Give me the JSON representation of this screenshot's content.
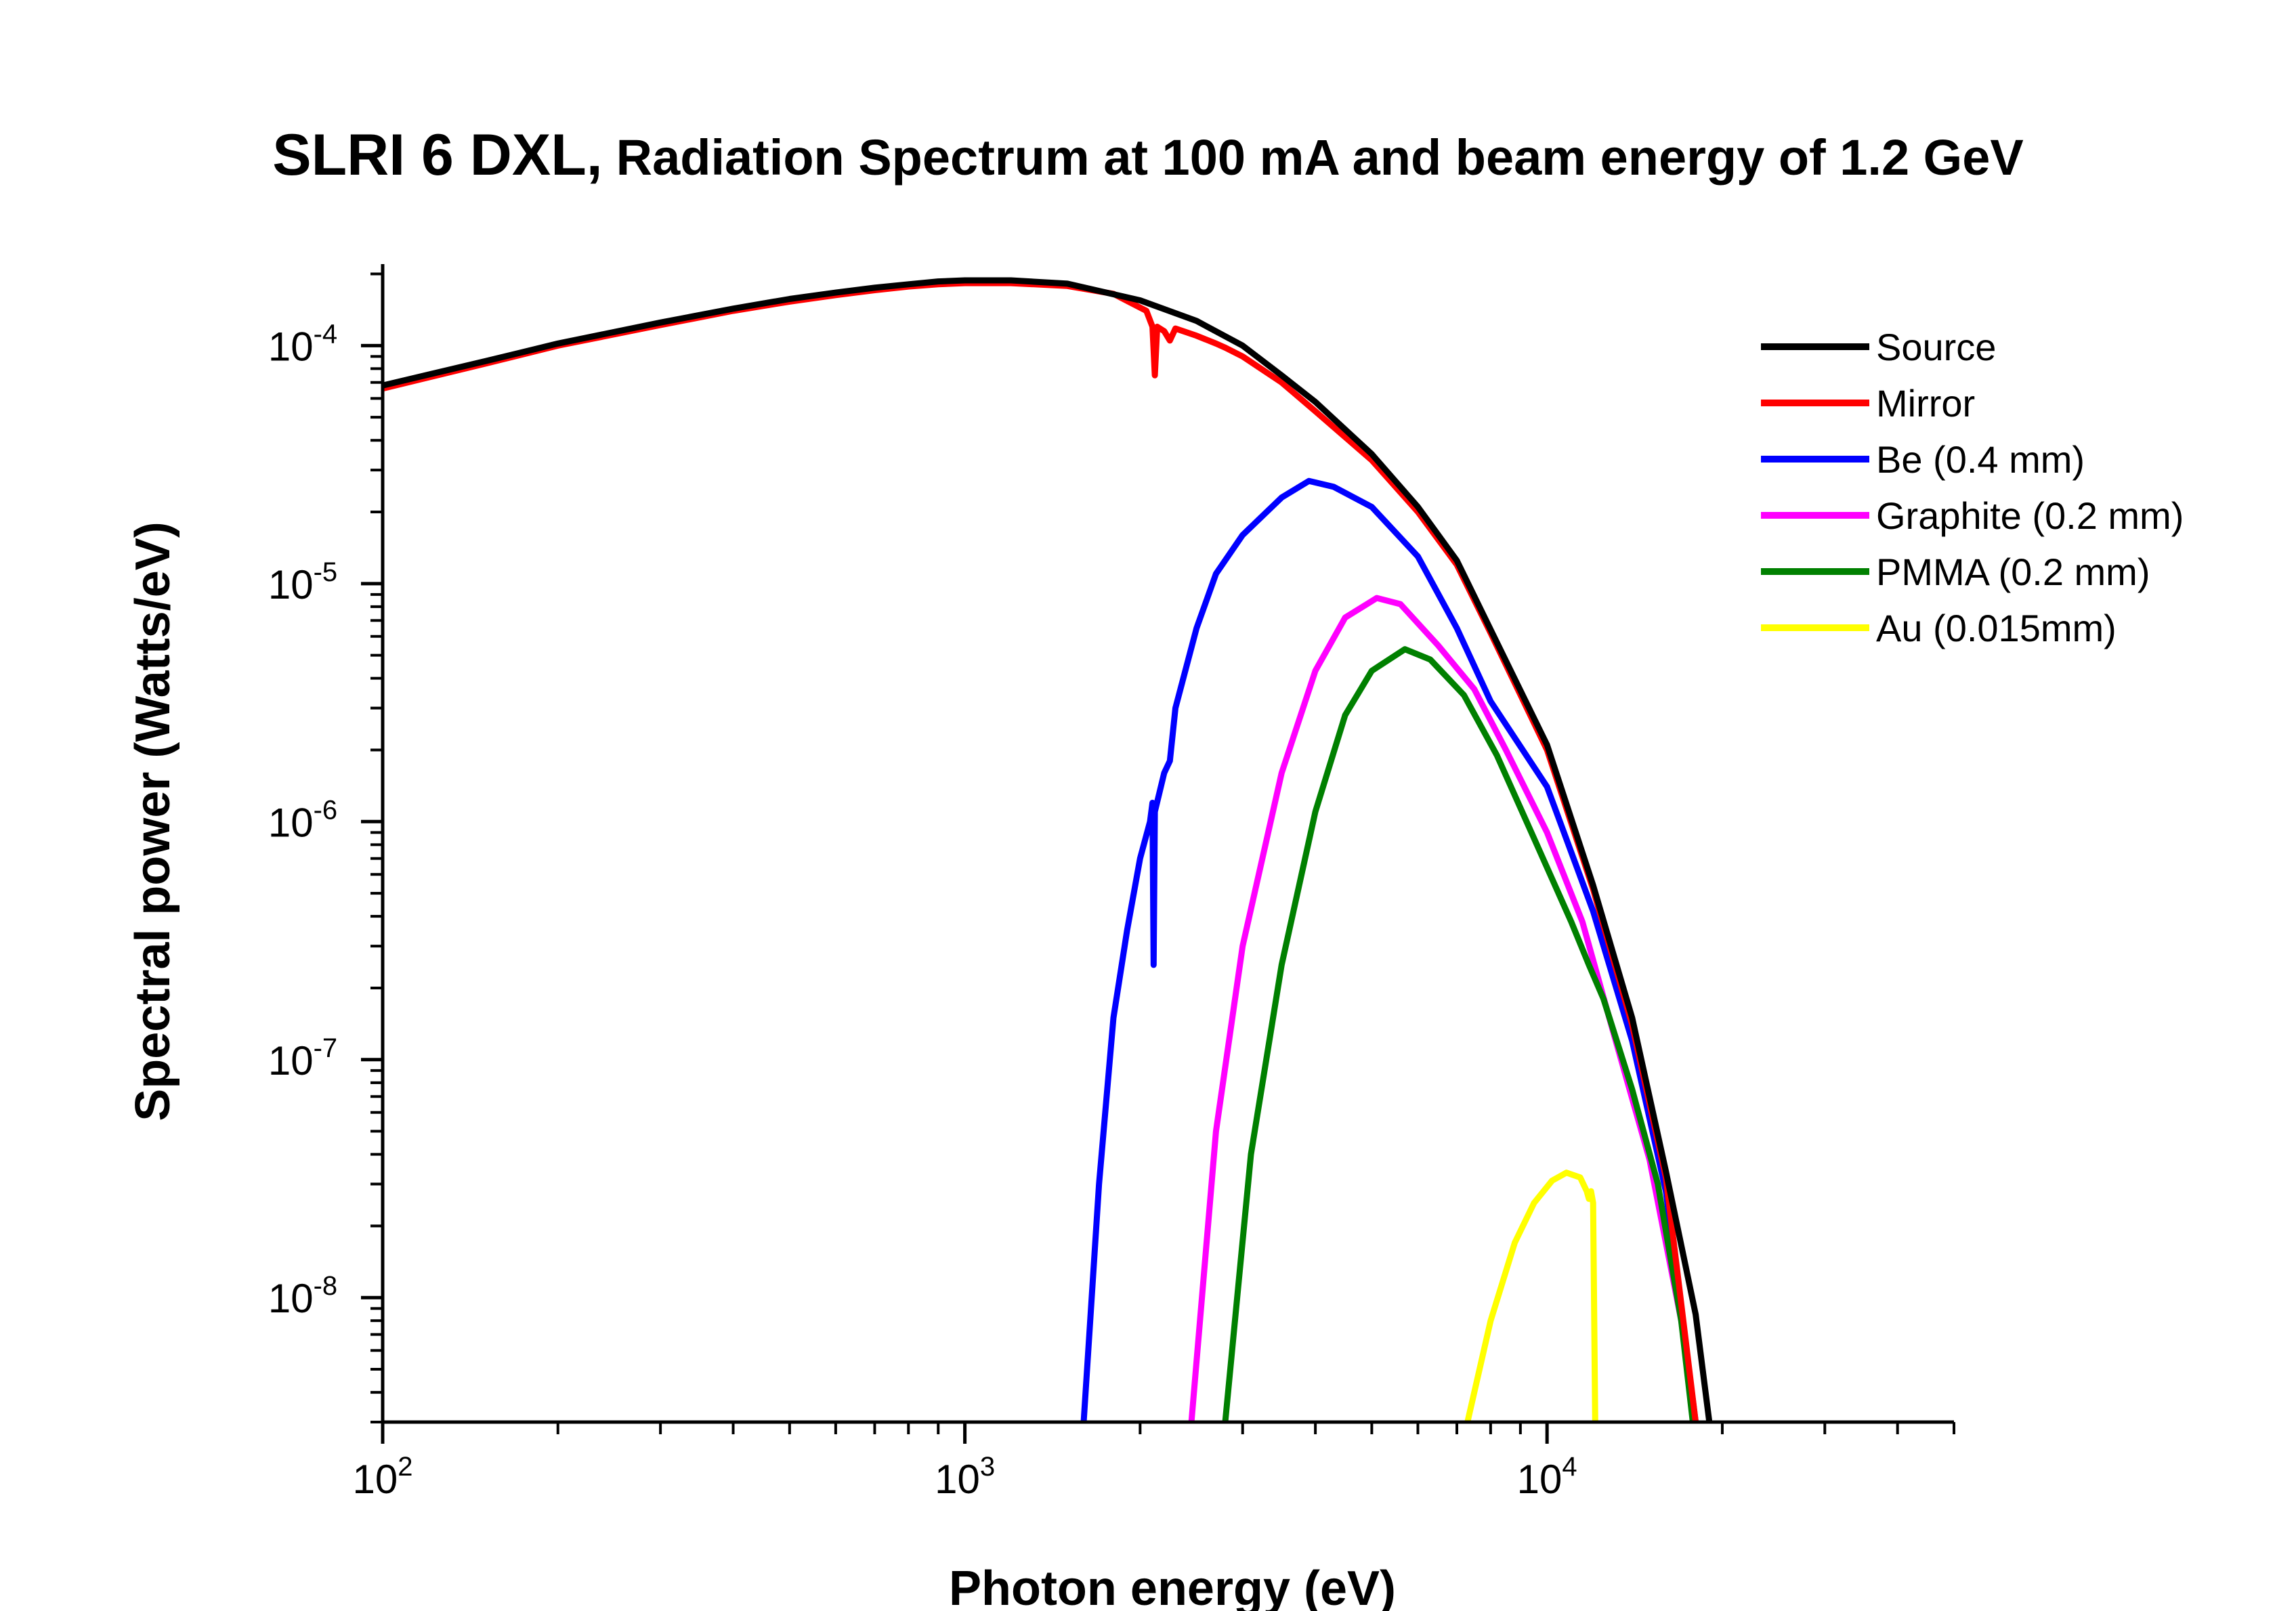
{
  "chart_data": {
    "type": "line",
    "title": "SLRI 6 DXL, Radiation Spectrum at 100 mA and beam energy of 1.2 GeV",
    "title_parts": [
      "SLRI 6 DXL,",
      "Radiation Spectrum at 100 mA and beam energy of 1.2 GeV"
    ],
    "xlabel": "Photon energy (eV)",
    "ylabel": "Spectral power (Watts/eV)",
    "xscale": "log",
    "yscale": "log",
    "xlim": [
      100,
      50000
    ],
    "ylim": [
      3e-09,
      0.00022
    ],
    "x_ticks": [
      {
        "value": 100,
        "base": "10",
        "exp": "2"
      },
      {
        "value": 1000,
        "base": "10",
        "exp": "3"
      },
      {
        "value": 10000,
        "base": "10",
        "exp": "4"
      }
    ],
    "y_ticks": [
      {
        "value": 1e-08,
        "base": "10",
        "exp": "-8"
      },
      {
        "value": 1e-07,
        "base": "10",
        "exp": "-7"
      },
      {
        "value": 1e-06,
        "base": "10",
        "exp": "-6"
      },
      {
        "value": 1e-05,
        "base": "10",
        "exp": "-5"
      },
      {
        "value": 0.0001,
        "base": "10",
        "exp": "-4"
      }
    ],
    "grid": false,
    "legend_position": "top-right",
    "series": [
      {
        "name": "Source",
        "color": "#000000",
        "points": [
          [
            100,
            6.8e-05
          ],
          [
            150,
            8.6e-05
          ],
          [
            200,
            0.000102
          ],
          [
            300,
            0.000125
          ],
          [
            400,
            0.000143
          ],
          [
            500,
            0.000157
          ],
          [
            600,
            0.000167
          ],
          [
            700,
            0.000175
          ],
          [
            800,
            0.000181
          ],
          [
            900,
            0.000186
          ],
          [
            1000,
            0.000188
          ],
          [
            1200,
            0.000188
          ],
          [
            1500,
            0.000182
          ],
          [
            2000,
            0.000155
          ],
          [
            2500,
            0.000127
          ],
          [
            3000,
            0.0001
          ],
          [
            3500,
            7.5e-05
          ],
          [
            4000,
            5.8e-05
          ],
          [
            5000,
            3.5e-05
          ],
          [
            6000,
            2.1e-05
          ],
          [
            7000,
            1.25e-05
          ],
          [
            8000,
            6.4e-06
          ],
          [
            10000,
            2.1e-06
          ],
          [
            12000,
            5.4e-07
          ],
          [
            14000,
            1.5e-07
          ],
          [
            16000,
            3.4e-08
          ],
          [
            18000,
            8.5e-09
          ],
          [
            19000,
            3e-09
          ]
        ]
      },
      {
        "name": " Mirror",
        "color": "#ff0000",
        "points": [
          [
            100,
            6.6e-05
          ],
          [
            150,
            8.4e-05
          ],
          [
            200,
            0.0001
          ],
          [
            300,
            0.000122
          ],
          [
            400,
            0.00014
          ],
          [
            500,
            0.000153
          ],
          [
            600,
            0.000163
          ],
          [
            700,
            0.000171
          ],
          [
            800,
            0.000177
          ],
          [
            900,
            0.000181
          ],
          [
            1000,
            0.000183
          ],
          [
            1200,
            0.000183
          ],
          [
            1500,
            0.000178
          ],
          [
            1800,
            0.000165
          ],
          [
            2050,
            0.00014
          ],
          [
            2100,
            0.00012
          ],
          [
            2120,
            7.5e-05
          ],
          [
            2140,
            0.00012
          ],
          [
            2200,
            0.000115
          ],
          [
            2250,
            0.000105
          ],
          [
            2300,
            0.000118
          ],
          [
            2500,
            0.00011
          ],
          [
            2700,
            0.000102
          ],
          [
            2800,
            9.8e-05
          ],
          [
            3000,
            9e-05
          ],
          [
            3500,
            7e-05
          ],
          [
            4000,
            5.3e-05
          ],
          [
            5000,
            3.3e-05
          ],
          [
            6000,
            2e-05
          ],
          [
            7000,
            1.2e-05
          ],
          [
            8000,
            6.2e-06
          ],
          [
            10000,
            2e-06
          ],
          [
            12000,
            5.2e-07
          ],
          [
            14000,
            1.4e-07
          ],
          [
            16000,
            3.2e-08
          ],
          [
            18000,
            3e-09
          ]
        ]
      },
      {
        "name": "Be (0.4 mm)",
        "color": "#0000ff",
        "points": [
          [
            1600,
            3e-09
          ],
          [
            1700,
            3e-08
          ],
          [
            1800,
            1.5e-07
          ],
          [
            1900,
            3.5e-07
          ],
          [
            2000,
            7e-07
          ],
          [
            2080,
            1e-06
          ],
          [
            2100,
            1.2e-06
          ],
          [
            2110,
            2.5e-07
          ],
          [
            2120,
            1.1e-06
          ],
          [
            2200,
            1.6e-06
          ],
          [
            2250,
            1.8e-06
          ],
          [
            2300,
            3e-06
          ],
          [
            2500,
            6.5e-06
          ],
          [
            2700,
            1.1e-05
          ],
          [
            3000,
            1.6e-05
          ],
          [
            3500,
            2.3e-05
          ],
          [
            3900,
            2.7e-05
          ],
          [
            4300,
            2.55e-05
          ],
          [
            5000,
            2.1e-05
          ],
          [
            6000,
            1.3e-05
          ],
          [
            7000,
            6.5e-06
          ],
          [
            8000,
            3.2e-06
          ],
          [
            10000,
            1.4e-06
          ],
          [
            12000,
            4.2e-07
          ],
          [
            14000,
            1.2e-07
          ],
          [
            16000,
            2.8e-08
          ],
          [
            18000,
            3e-09
          ]
        ]
      },
      {
        "name": "Graphite (0.2 mm)",
        "color": "#ff00ff",
        "points": [
          [
            2450,
            3e-09
          ],
          [
            2700,
            5e-08
          ],
          [
            3000,
            3e-07
          ],
          [
            3500,
            1.6e-06
          ],
          [
            4000,
            4.3e-06
          ],
          [
            4500,
            7.2e-06
          ],
          [
            5100,
            8.7e-06
          ],
          [
            5600,
            8.2e-06
          ],
          [
            6500,
            5.5e-06
          ],
          [
            7500,
            3.6e-06
          ],
          [
            8500,
            2e-06
          ],
          [
            10000,
            9e-07
          ],
          [
            11500,
            3.8e-07
          ],
          [
            13000,
            1.3e-07
          ],
          [
            15000,
            3.8e-08
          ],
          [
            17000,
            8e-09
          ],
          [
            18000,
            3e-09
          ]
        ]
      },
      {
        "name": "PMMA (0.2 mm)",
        "color": "#008000",
        "points": [
          [
            2800,
            3e-09
          ],
          [
            3100,
            4e-08
          ],
          [
            3500,
            2.5e-07
          ],
          [
            4000,
            1.1e-06
          ],
          [
            4500,
            2.8e-06
          ],
          [
            5000,
            4.3e-06
          ],
          [
            5700,
            5.3e-06
          ],
          [
            6300,
            4.8e-06
          ],
          [
            7200,
            3.4e-06
          ],
          [
            8200,
            1.9e-06
          ],
          [
            9500,
            8.5e-07
          ],
          [
            11000,
            3.8e-07
          ],
          [
            11800,
            2.5e-07
          ],
          [
            12500,
            1.8e-07
          ],
          [
            14000,
            7.5e-08
          ],
          [
            15500,
            3e-08
          ],
          [
            17000,
            8e-09
          ],
          [
            17800,
            3e-09
          ]
        ]
      },
      {
        "name": "Au (0.015mm)",
        "color": "#ffff00",
        "points": [
          [
            7300,
            3e-09
          ],
          [
            8000,
            8e-09
          ],
          [
            8800,
            1.7e-08
          ],
          [
            9500,
            2.5e-08
          ],
          [
            10200,
            3.1e-08
          ],
          [
            10800,
            3.35e-08
          ],
          [
            11400,
            3.2e-08
          ],
          [
            11700,
            2.8e-08
          ],
          [
            11800,
            2.6e-08
          ],
          [
            11900,
            2.8e-08
          ],
          [
            12000,
            2.5e-08
          ],
          [
            12100,
            3e-09
          ]
        ]
      }
    ]
  }
}
